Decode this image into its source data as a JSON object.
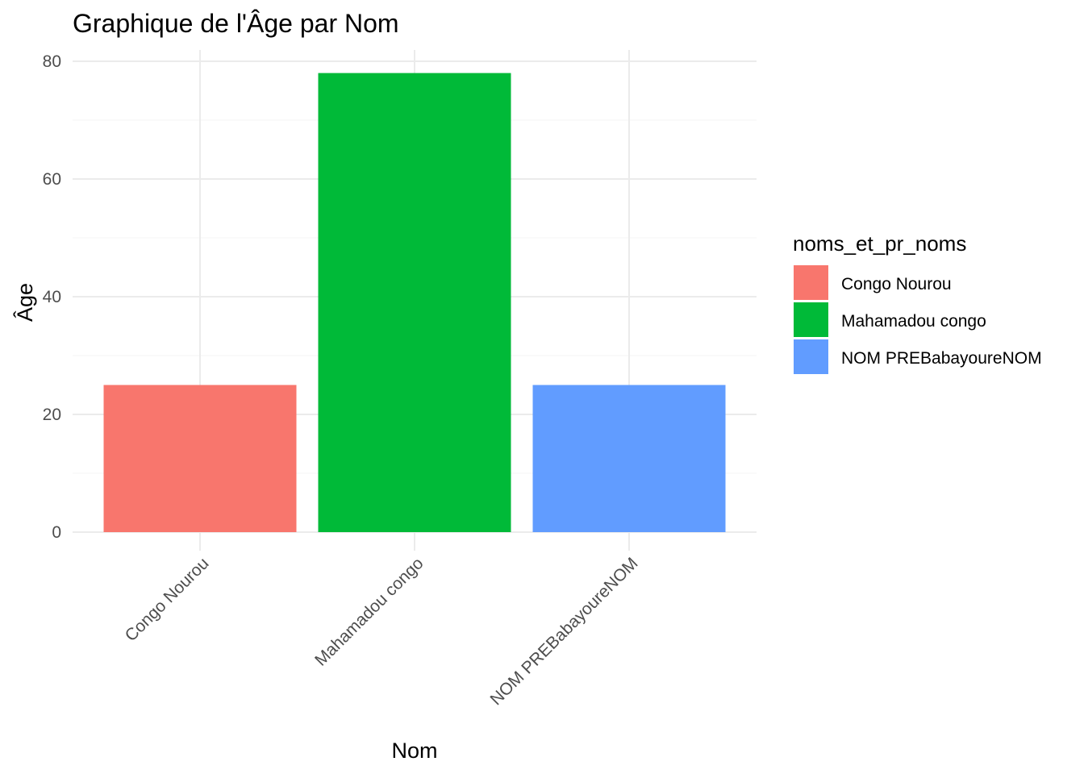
{
  "chart_data": {
    "type": "bar",
    "title": "Graphique de l'Âge par Nom",
    "xlabel": "Nom",
    "ylabel": "Âge",
    "categories": [
      "Congo Nourou",
      "Mahamadou congo",
      "NOM PREBabayoureNOM"
    ],
    "values": [
      25,
      78,
      25
    ],
    "colors": [
      "#F8766D",
      "#00BA38",
      "#619CFF"
    ],
    "ylim": [
      0,
      80
    ],
    "yticks": [
      "0",
      "20",
      "40",
      "60",
      "80"
    ],
    "grid": true,
    "legend": {
      "title": "noms_et_pr_noms",
      "position": "right",
      "items": [
        "Congo Nourou",
        "Mahamadou congo",
        "NOM PREBabayoureNOM"
      ]
    }
  }
}
